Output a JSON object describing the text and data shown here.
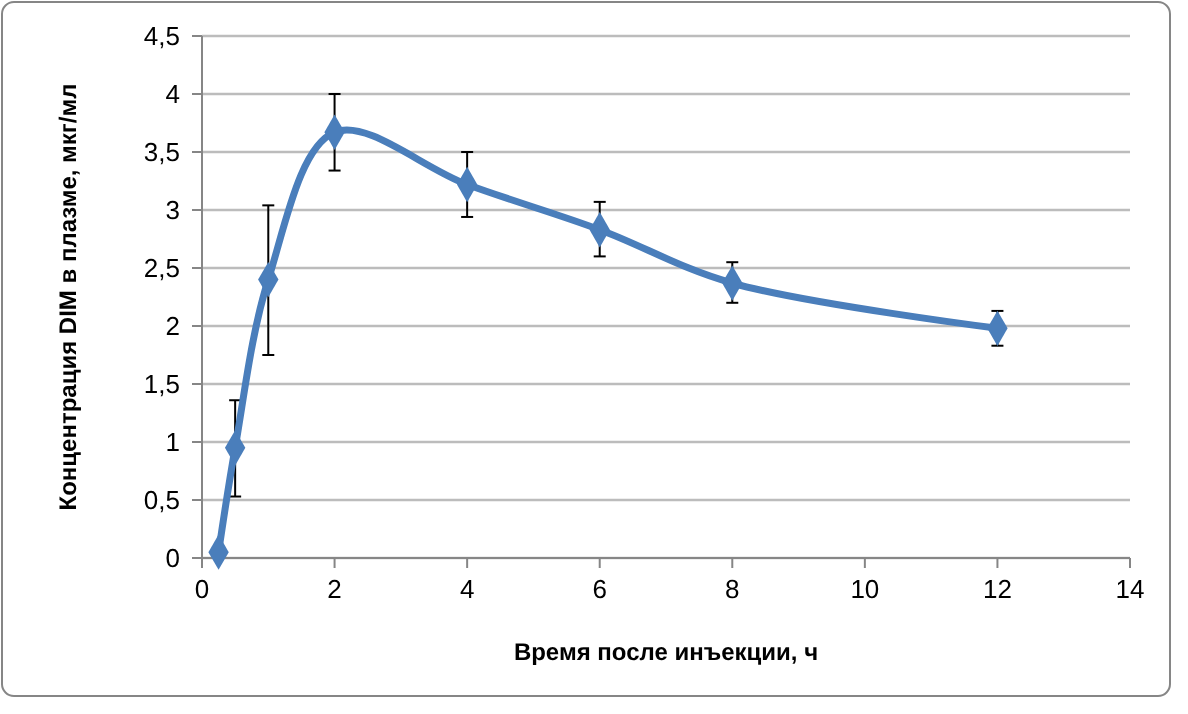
{
  "chart_data": {
    "type": "line",
    "xlabel": "Время после инъекции,  ч",
    "ylabel": "Концентрация DIM в плазме, мкг/мл",
    "x": [
      0.25,
      0.5,
      1,
      2,
      4,
      6,
      8,
      12
    ],
    "series": [
      {
        "color": "#4a7ebb",
        "values": [
          0.05,
          0.95,
          2.4,
          3.67,
          3.22,
          2.83,
          2.37,
          1.98
        ],
        "errors": [
          null,
          [
            0.53,
            1.36
          ],
          [
            1.75,
            3.04
          ],
          [
            3.34,
            4.0
          ],
          [
            2.94,
            3.5
          ],
          [
            2.6,
            3.07
          ],
          [
            2.2,
            2.55
          ],
          [
            1.83,
            2.13
          ]
        ]
      }
    ],
    "xlim": [
      0,
      14
    ],
    "xticks": [
      0,
      2,
      4,
      6,
      8,
      10,
      12,
      14
    ],
    "ylim": [
      0,
      4.5
    ],
    "yticks": [
      0,
      {
        "value": 0.5,
        "label": "0,5"
      },
      1,
      {
        "value": 1.5,
        "label": "1,5"
      },
      2,
      {
        "value": 2.5,
        "label": "2,5"
      },
      3,
      {
        "value": 3.5,
        "label": "3,5"
      },
      4,
      {
        "value": 4.5,
        "label": "4,5"
      }
    ],
    "grid": "y",
    "marker": "diamond",
    "line_style": "solid"
  }
}
